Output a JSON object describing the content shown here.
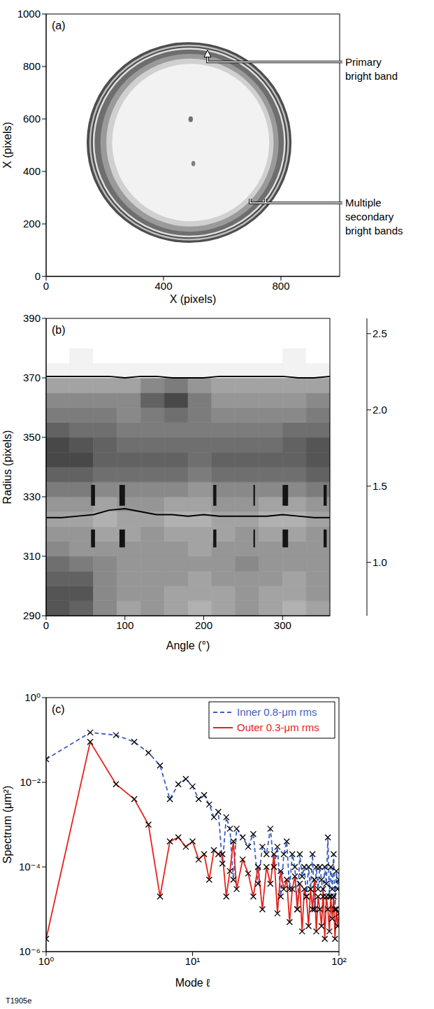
{
  "figure_label": "T1905e",
  "chart_data": [
    {
      "type": "image",
      "panel": "(a)",
      "xlabel": "X (pixels)",
      "ylabel": "X (pixels)",
      "xlim": [
        0,
        1000
      ],
      "ylim": [
        0,
        1000
      ],
      "xticks": [
        0,
        400,
        800
      ],
      "yticks": [
        0,
        200,
        400,
        600,
        800,
        1000
      ],
      "disks": [
        {
          "x": [
            138,
            836
          ],
          "y": [
            128,
            893
          ],
          "color": "#4d4d4d"
        },
        {
          "x": [
            160,
            815
          ],
          "y": [
            150,
            870
          ],
          "color": "#6e6e6e"
        },
        {
          "x": [
            185,
            792
          ],
          "y": [
            170,
            848
          ],
          "color": "#9a9a9a"
        },
        {
          "x": [
            205,
            775
          ],
          "y": [
            190,
            830
          ],
          "color": "#d0d0d0"
        },
        {
          "x": [
            225,
            760
          ],
          "y": [
            210,
            810
          ],
          "color": "#f2f2f2"
        },
        {
          "x": [
            485,
            500
          ],
          "y": [
            588,
            610
          ],
          "color": "#707070"
        },
        {
          "x": [
            495,
            508
          ],
          "y": [
            420,
            440
          ],
          "color": "#808080"
        }
      ],
      "rings": [
        {
          "x": [
            162,
            813
          ],
          "y": [
            152,
            868
          ],
          "color": "#e0e0e0"
        },
        {
          "x": [
            150,
            825
          ],
          "y": [
            140,
            880
          ],
          "color": "#bdbdbd"
        }
      ],
      "annotations": [
        {
          "text": "Primary bright band",
          "x": 550,
          "y": 860,
          "marker": "arrow"
        },
        {
          "text": "Multiple secondary bright bands",
          "x": [
            695,
            748
          ],
          "y": 280,
          "marker": "bracket"
        }
      ]
    },
    {
      "type": "heatmap",
      "panel": "(b)",
      "xlabel": "Angle (°)",
      "ylabel": "Radius (pixels)",
      "xlim": [
        0,
        360
      ],
      "ylim": [
        290,
        390
      ],
      "xticks": [
        0,
        100,
        200,
        300
      ],
      "yticks": [
        290,
        310,
        330,
        350,
        370,
        390
      ],
      "x_edges": [
        0,
        30,
        60,
        90,
        120,
        150,
        180,
        210,
        240,
        270,
        300,
        330,
        360
      ],
      "y_edges": [
        290,
        295,
        300,
        305,
        310,
        315,
        320,
        325,
        330,
        335,
        340,
        345,
        350,
        355,
        360,
        365,
        370,
        375,
        380,
        385,
        390
      ],
      "cells": [
        [
          1.3,
          1.4,
          1.7,
          1.9,
          1.8,
          1.9,
          2.0,
          1.9,
          1.8,
          1.9,
          2.0,
          1.9
        ],
        [
          1.3,
          1.3,
          1.7,
          1.8,
          1.8,
          1.9,
          1.9,
          1.9,
          1.8,
          1.9,
          1.9,
          1.8
        ],
        [
          1.4,
          1.4,
          1.7,
          1.8,
          1.8,
          1.8,
          1.9,
          1.8,
          1.8,
          1.8,
          1.9,
          1.8
        ],
        [
          1.5,
          1.6,
          1.7,
          1.8,
          1.8,
          1.8,
          1.8,
          1.8,
          1.7,
          1.8,
          1.8,
          1.8
        ],
        [
          1.7,
          1.8,
          1.8,
          1.8,
          1.8,
          1.8,
          1.9,
          1.8,
          1.8,
          1.8,
          1.8,
          1.8
        ],
        [
          1.8,
          1.8,
          1.9,
          1.9,
          1.8,
          1.9,
          1.9,
          1.9,
          1.8,
          1.9,
          1.9,
          1.8
        ],
        [
          1.9,
          1.9,
          2.0,
          1.9,
          1.9,
          2.0,
          2.0,
          1.9,
          1.9,
          2.0,
          2.0,
          1.9
        ],
        [
          1.8,
          1.8,
          1.9,
          1.8,
          1.8,
          1.9,
          1.9,
          1.8,
          1.8,
          1.9,
          1.9,
          1.8
        ],
        [
          1.6,
          1.6,
          1.7,
          1.7,
          1.7,
          1.7,
          1.8,
          1.7,
          1.7,
          1.7,
          1.7,
          1.6
        ],
        [
          1.4,
          1.4,
          1.5,
          1.5,
          1.5,
          1.5,
          1.6,
          1.5,
          1.5,
          1.5,
          1.5,
          1.4
        ],
        [
          1.2,
          1.2,
          1.4,
          1.4,
          1.4,
          1.4,
          1.5,
          1.4,
          1.4,
          1.4,
          1.4,
          1.3
        ],
        [
          1.2,
          1.3,
          1.4,
          1.5,
          1.5,
          1.5,
          1.5,
          1.5,
          1.5,
          1.5,
          1.4,
          1.3
        ],
        [
          1.4,
          1.5,
          1.5,
          1.6,
          1.6,
          1.6,
          1.6,
          1.6,
          1.6,
          1.6,
          1.5,
          1.5
        ],
        [
          1.6,
          1.6,
          1.6,
          1.7,
          1.6,
          1.5,
          1.6,
          1.7,
          1.7,
          1.7,
          1.7,
          1.6
        ],
        [
          1.7,
          1.7,
          1.7,
          1.7,
          1.4,
          1.2,
          1.6,
          1.8,
          1.8,
          1.8,
          1.8,
          1.7
        ],
        [
          1.9,
          1.9,
          1.9,
          1.9,
          1.7,
          1.6,
          1.8,
          1.9,
          1.9,
          1.9,
          1.9,
          1.9
        ],
        [
          2.5,
          2.5,
          2.5,
          2.5,
          2.5,
          2.5,
          2.5,
          2.5,
          2.5,
          2.5,
          2.5,
          2.5
        ],
        [
          2.6,
          2.5,
          2.6,
          2.6,
          2.6,
          2.6,
          2.6,
          2.6,
          2.6,
          2.6,
          2.5,
          2.6
        ],
        [
          2.6,
          2.6,
          2.6,
          2.6,
          2.6,
          2.6,
          2.6,
          2.6,
          2.6,
          2.6,
          2.6,
          2.6
        ],
        [
          2.6,
          2.6,
          2.6,
          2.6,
          2.6,
          2.6,
          2.6,
          2.6,
          2.6,
          2.6,
          2.6,
          2.6
        ]
      ],
      "spots": {
        "x_ranges": [
          [
            57,
            62
          ],
          [
            93,
            100
          ],
          [
            212,
            216
          ],
          [
            263,
            265
          ],
          [
            300,
            307
          ],
          [
            352,
            356
          ]
        ],
        "y_ranges": [
          [
            313,
            319
          ],
          [
            327,
            334
          ]
        ],
        "value": 0.8
      },
      "colorbar": {
        "lim": [
          0.65,
          2.6
        ],
        "ticks": [
          {
            "value": 1,
            "label": "1.0"
          },
          1.5,
          {
            "value": 2,
            "label": "2.0"
          },
          2.5
        ]
      },
      "lines": {
        "x": [
          0,
          20,
          40,
          60,
          80,
          100,
          120,
          140,
          160,
          180,
          200,
          220,
          240,
          260,
          280,
          300,
          320,
          340,
          360
        ],
        "series": [
          {
            "color": "#000000",
            "values": [
              370.5,
              370.5,
              370.5,
              370.5,
              370.5,
              370,
              370.5,
              370.5,
              370,
              370,
              370,
              370.5,
              370.5,
              370.5,
              370.5,
              370.5,
              370,
              370,
              370.5
            ]
          },
          {
            "color": "#000000",
            "values": [
              323,
              323,
              323.5,
              324,
              325.5,
              326,
              325,
              324,
              324,
              323.5,
              324,
              323.5,
              323.5,
              323.5,
              323.5,
              324,
              323.5,
              323,
              323
            ]
          }
        ]
      }
    },
    {
      "type": "line",
      "panel": "(c)",
      "xlabel": "Mode ℓ",
      "ylabel": "Spectrum (μm²)",
      "log": true,
      "xlim": [
        1,
        100
      ],
      "ylim": [
        1e-06,
        1
      ],
      "xticks": [
        {
          "value": 1,
          "label": "10⁰"
        },
        {
          "value": 10,
          "label": "10¹"
        },
        {
          "value": 100,
          "label": "10²"
        }
      ],
      "yticks": [
        {
          "value": 1e-06,
          "label": "10⁻⁶"
        },
        {
          "value": 0.0001,
          "label": "10⁻⁴"
        },
        {
          "value": 0.01,
          "label": "10⁻²"
        },
        {
          "value": 1,
          "label": "10⁰"
        }
      ],
      "legend": "upper right",
      "marker": "x",
      "x": [
        1,
        2,
        3,
        4,
        5,
        6,
        7,
        8,
        9,
        10,
        11,
        12,
        13,
        14,
        15,
        16,
        17,
        18,
        19,
        20,
        22,
        24,
        26,
        28,
        30,
        32,
        34,
        36,
        38,
        40,
        42,
        44,
        46,
        48,
        50,
        52,
        54,
        56,
        58,
        60,
        62,
        64,
        66,
        68,
        70,
        72,
        74,
        76,
        78,
        80,
        82,
        84,
        86,
        88,
        90,
        92,
        94,
        96,
        98,
        100
      ],
      "series": [
        {
          "name": "Inner 0.8-μm rms",
          "color": "#3b5fc0",
          "line_style": "dashed",
          "values": [
            0.035,
            0.15,
            0.13,
            0.09,
            0.05,
            0.025,
            0.004,
            0.009,
            0.012,
            0.008,
            0.004,
            0.005,
            0.003,
            0.0015,
            0.002,
            0.00012,
            0.0015,
            0.0008,
            5e-05,
            0.0008,
            0.0005,
            0.0003,
            0.0006,
            4e-05,
            0.0003,
            0.0002,
            0.0008,
            0.0001,
            0.0003,
            2e-05,
            0.0002,
            0.0004,
            3e-05,
            0.0002,
            0.0001,
            1e-05,
            0.0002,
            6e-05,
            0.0001,
            2e-05,
            0.0001,
            3e-05,
            0.0002,
            1e-05,
            0.0001,
            3e-05,
            0.0001,
            5e-05,
            2e-05,
            0.0001,
            4e-05,
            0.0005,
            2e-05,
            0.0001,
            3e-05,
            0.0002,
            1e-05,
            8e-05,
            3e-05,
            5e-05
          ]
        },
        {
          "name": "Outer 0.3-μm rms",
          "color": "#e3231b",
          "line_style": "solid",
          "values": [
            2e-06,
            0.09,
            0.009,
            0.004,
            0.001,
            2e-05,
            0.0004,
            0.0005,
            0.0003,
            0.0004,
            0.00015,
            0.0002,
            5e-05,
            0.00025,
            0.0002,
            0.0002,
            2e-05,
            8e-05,
            0.0004,
            3e-05,
            0.00015,
            7e-05,
            2e-05,
            0.0001,
            1e-05,
            0.0001,
            4e-05,
            0.0002,
            8e-06,
            8e-05,
            3e-05,
            5e-05,
            5e-06,
            3e-05,
            6e-05,
            1e-05,
            4e-05,
            3e-06,
            3e-05,
            2e-05,
            4e-06,
            3e-05,
            1e-05,
            5e-05,
            3e-06,
            2e-05,
            1e-05,
            4e-06,
            3e-05,
            2e-06,
            2e-05,
            1e-05,
            3e-06,
            2e-05,
            6e-06,
            2e-05,
            2e-06,
            1e-05,
            4e-06,
            8e-06
          ]
        }
      ]
    }
  ]
}
